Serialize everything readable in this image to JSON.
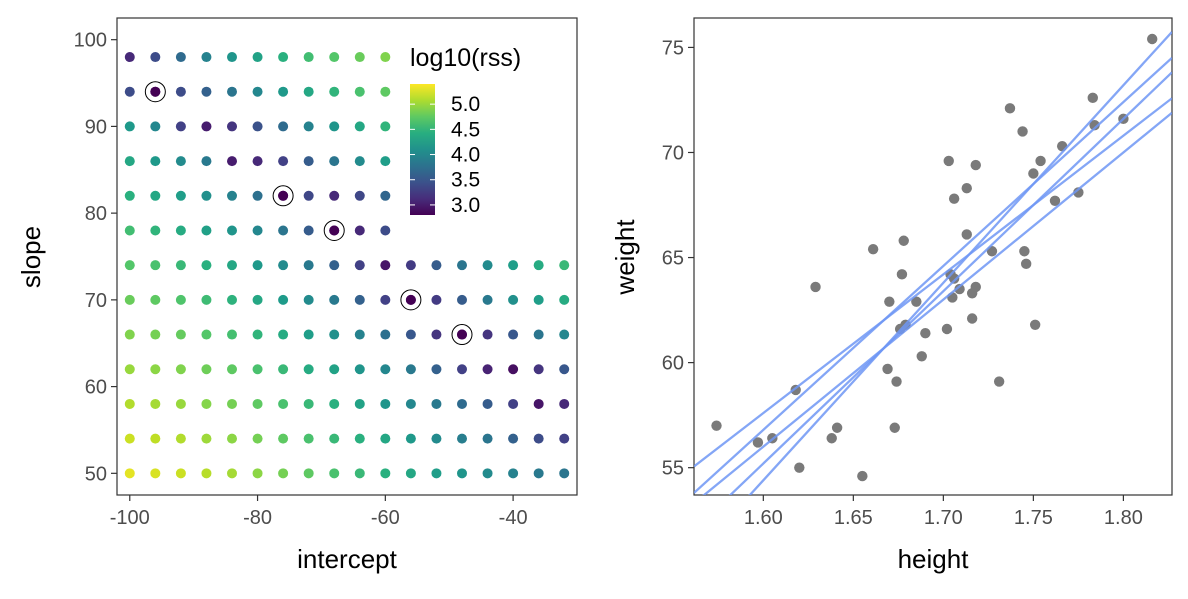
{
  "chart_data": [
    {
      "type": "scatter",
      "subtype": "grid-heatmap",
      "xlabel": "intercept",
      "ylabel": "slope",
      "xlim": [
        -102,
        -30
      ],
      "ylim": [
        47.5,
        102.5
      ],
      "x_ticks": [
        -100,
        -80,
        -60,
        -40
      ],
      "y_ticks": [
        50,
        60,
        70,
        80,
        90,
        100
      ],
      "x_tick_labels": [
        "-100",
        "-80",
        "-60",
        "-40"
      ],
      "y_tick_labels": [
        "50",
        "60",
        "70",
        "80",
        "90",
        "100"
      ],
      "grid": false,
      "color_scale": "viridis",
      "legend": {
        "title": "log10(rss)",
        "position": "top-right",
        "range": [
          2.8,
          5.4
        ],
        "breaks": [
          3.0,
          3.5,
          4.0,
          4.5,
          5.0
        ],
        "labels": [
          "3.0",
          "3.5",
          "4.0",
          "4.5",
          "5.0"
        ]
      },
      "grid_x": [
        -100,
        -96,
        -92,
        -88,
        -84,
        -80,
        -76,
        -72,
        -68,
        -64,
        -60,
        -56,
        -52,
        -48,
        -44,
        -40,
        -36,
        -32
      ],
      "grid_y": [
        50,
        54,
        58,
        62,
        66,
        70,
        74,
        78,
        82,
        86,
        90,
        94,
        98
      ],
      "grid_rows_note": "log10(rss) per slope row (row 0 = slope 50); null = no point",
      "log10_rss": [
        [
          5.3,
          5.25,
          5.2,
          5.12,
          5.05,
          4.95,
          4.85,
          4.75,
          4.65,
          4.55,
          4.45,
          4.35,
          4.25,
          4.15,
          4.05,
          3.95,
          3.85,
          3.8
        ],
        [
          5.2,
          5.15,
          5.1,
          5.02,
          4.95,
          4.85,
          4.75,
          4.65,
          4.55,
          4.45,
          4.35,
          4.2,
          4.05,
          3.9,
          3.8,
          3.6,
          3.4,
          3.3
        ],
        [
          5.1,
          5.05,
          5.0,
          4.92,
          4.85,
          4.75,
          4.65,
          4.55,
          4.45,
          4.3,
          4.15,
          4.0,
          3.85,
          3.7,
          3.55,
          3.3,
          2.95,
          3.1
        ],
        [
          5.0,
          4.95,
          4.9,
          4.82,
          4.75,
          4.65,
          4.55,
          4.4,
          4.3,
          4.15,
          4.0,
          3.85,
          3.6,
          3.3,
          3.05,
          2.9,
          3.2,
          3.5
        ],
        [
          4.9,
          4.85,
          4.78,
          4.7,
          4.62,
          4.5,
          4.4,
          4.25,
          4.1,
          3.95,
          3.75,
          3.5,
          3.2,
          2.95,
          3.2,
          3.5,
          3.8,
          4.0
        ],
        [
          4.8,
          4.75,
          4.68,
          4.58,
          4.48,
          4.35,
          4.22,
          4.05,
          3.85,
          3.6,
          3.3,
          2.95,
          3.25,
          3.55,
          3.85,
          4.1,
          4.25,
          4.4
        ],
        [
          4.7,
          4.65,
          4.55,
          4.45,
          4.35,
          4.2,
          4.05,
          3.85,
          3.6,
          3.3,
          2.95,
          3.25,
          3.55,
          3.8,
          4.05,
          4.25,
          4.4,
          4.55
        ],
        [
          4.6,
          4.5,
          4.4,
          4.28,
          4.15,
          4.0,
          3.8,
          3.55,
          3.0,
          3.1,
          3.4,
          null,
          null,
          null,
          null,
          null,
          null,
          null
        ],
        [
          4.45,
          4.35,
          4.25,
          4.1,
          3.95,
          3.75,
          2.95,
          3.35,
          3.1,
          3.35,
          3.65,
          null,
          null,
          null,
          null,
          null,
          null,
          null
        ],
        [
          4.35,
          4.2,
          4.05,
          3.85,
          3.0,
          3.1,
          3.3,
          3.55,
          3.8,
          4.05,
          4.25,
          null,
          null,
          null,
          null,
          null,
          null,
          null
        ],
        [
          4.2,
          4.0,
          3.3,
          3.0,
          3.2,
          3.45,
          3.7,
          3.95,
          4.15,
          4.35,
          4.5,
          null,
          null,
          null,
          null,
          null,
          null,
          null
        ],
        [
          3.4,
          2.95,
          3.4,
          3.6,
          3.8,
          4.0,
          4.2,
          4.35,
          4.5,
          4.65,
          4.75,
          null,
          null,
          null,
          null,
          null,
          null,
          null
        ],
        [
          3.1,
          3.4,
          3.7,
          3.95,
          4.15,
          4.3,
          4.45,
          4.6,
          4.7,
          4.8,
          4.9,
          null,
          null,
          null,
          null,
          null,
          null,
          null
        ]
      ],
      "highlighted": [
        {
          "intercept": -96,
          "slope": 94
        },
        {
          "intercept": -76,
          "slope": 82
        },
        {
          "intercept": -68,
          "slope": 78
        },
        {
          "intercept": -56,
          "slope": 70
        },
        {
          "intercept": -48,
          "slope": 66
        }
      ]
    },
    {
      "type": "scatter",
      "xlabel": "height",
      "ylabel": "weight",
      "xlim": [
        1.5615,
        1.827
      ],
      "ylim": [
        53.7,
        76.4
      ],
      "x_ticks": [
        1.6,
        1.65,
        1.7,
        1.75,
        1.8
      ],
      "y_ticks": [
        55,
        60,
        65,
        70,
        75
      ],
      "x_tick_labels": [
        "1.60",
        "1.65",
        "1.70",
        "1.75",
        "1.80"
      ],
      "y_tick_labels": [
        "55",
        "60",
        "65",
        "70",
        "75"
      ],
      "grid": false,
      "point_color": "#7a7a7a",
      "line_color": "#6e96f5",
      "points": [
        {
          "x": 1.574,
          "y": 57.0
        },
        {
          "x": 1.597,
          "y": 56.2
        },
        {
          "x": 1.605,
          "y": 56.4
        },
        {
          "x": 1.618,
          "y": 58.7
        },
        {
          "x": 1.62,
          "y": 55.0
        },
        {
          "x": 1.629,
          "y": 63.6
        },
        {
          "x": 1.638,
          "y": 56.4
        },
        {
          "x": 1.641,
          "y": 56.9
        },
        {
          "x": 1.655,
          "y": 54.6
        },
        {
          "x": 1.661,
          "y": 65.4
        },
        {
          "x": 1.669,
          "y": 59.7
        },
        {
          "x": 1.67,
          "y": 62.9
        },
        {
          "x": 1.673,
          "y": 56.9
        },
        {
          "x": 1.674,
          "y": 59.1
        },
        {
          "x": 1.676,
          "y": 61.6
        },
        {
          "x": 1.677,
          "y": 64.2
        },
        {
          "x": 1.678,
          "y": 65.8
        },
        {
          "x": 1.679,
          "y": 61.8
        },
        {
          "x": 1.685,
          "y": 62.9
        },
        {
          "x": 1.688,
          "y": 60.3
        },
        {
          "x": 1.69,
          "y": 61.4
        },
        {
          "x": 1.702,
          "y": 61.6
        },
        {
          "x": 1.703,
          "y": 69.6
        },
        {
          "x": 1.704,
          "y": 64.2
        },
        {
          "x": 1.705,
          "y": 63.1
        },
        {
          "x": 1.706,
          "y": 64.0
        },
        {
          "x": 1.706,
          "y": 67.8
        },
        {
          "x": 1.709,
          "y": 63.5
        },
        {
          "x": 1.713,
          "y": 68.3
        },
        {
          "x": 1.713,
          "y": 66.1
        },
        {
          "x": 1.716,
          "y": 62.1
        },
        {
          "x": 1.716,
          "y": 63.3
        },
        {
          "x": 1.718,
          "y": 63.6
        },
        {
          "x": 1.718,
          "y": 69.4
        },
        {
          "x": 1.727,
          "y": 65.3
        },
        {
          "x": 1.731,
          "y": 59.1
        },
        {
          "x": 1.737,
          "y": 72.1
        },
        {
          "x": 1.744,
          "y": 71.0
        },
        {
          "x": 1.745,
          "y": 65.3
        },
        {
          "x": 1.746,
          "y": 64.7
        },
        {
          "x": 1.75,
          "y": 69.0
        },
        {
          "x": 1.751,
          "y": 61.8
        },
        {
          "x": 1.754,
          "y": 69.6
        },
        {
          "x": 1.762,
          "y": 67.7
        },
        {
          "x": 1.766,
          "y": 70.3
        },
        {
          "x": 1.775,
          "y": 68.1
        },
        {
          "x": 1.783,
          "y": 72.6
        },
        {
          "x": 1.784,
          "y": 71.3
        },
        {
          "x": 1.8,
          "y": 71.6
        },
        {
          "x": 1.816,
          "y": 75.4
        }
      ],
      "lines": [
        {
          "intercept": -96,
          "slope": 94
        },
        {
          "intercept": -76,
          "slope": 82
        },
        {
          "intercept": -68,
          "slope": 78
        },
        {
          "intercept": -56,
          "slope": 70
        },
        {
          "intercept": -48,
          "slope": 66
        }
      ]
    }
  ]
}
